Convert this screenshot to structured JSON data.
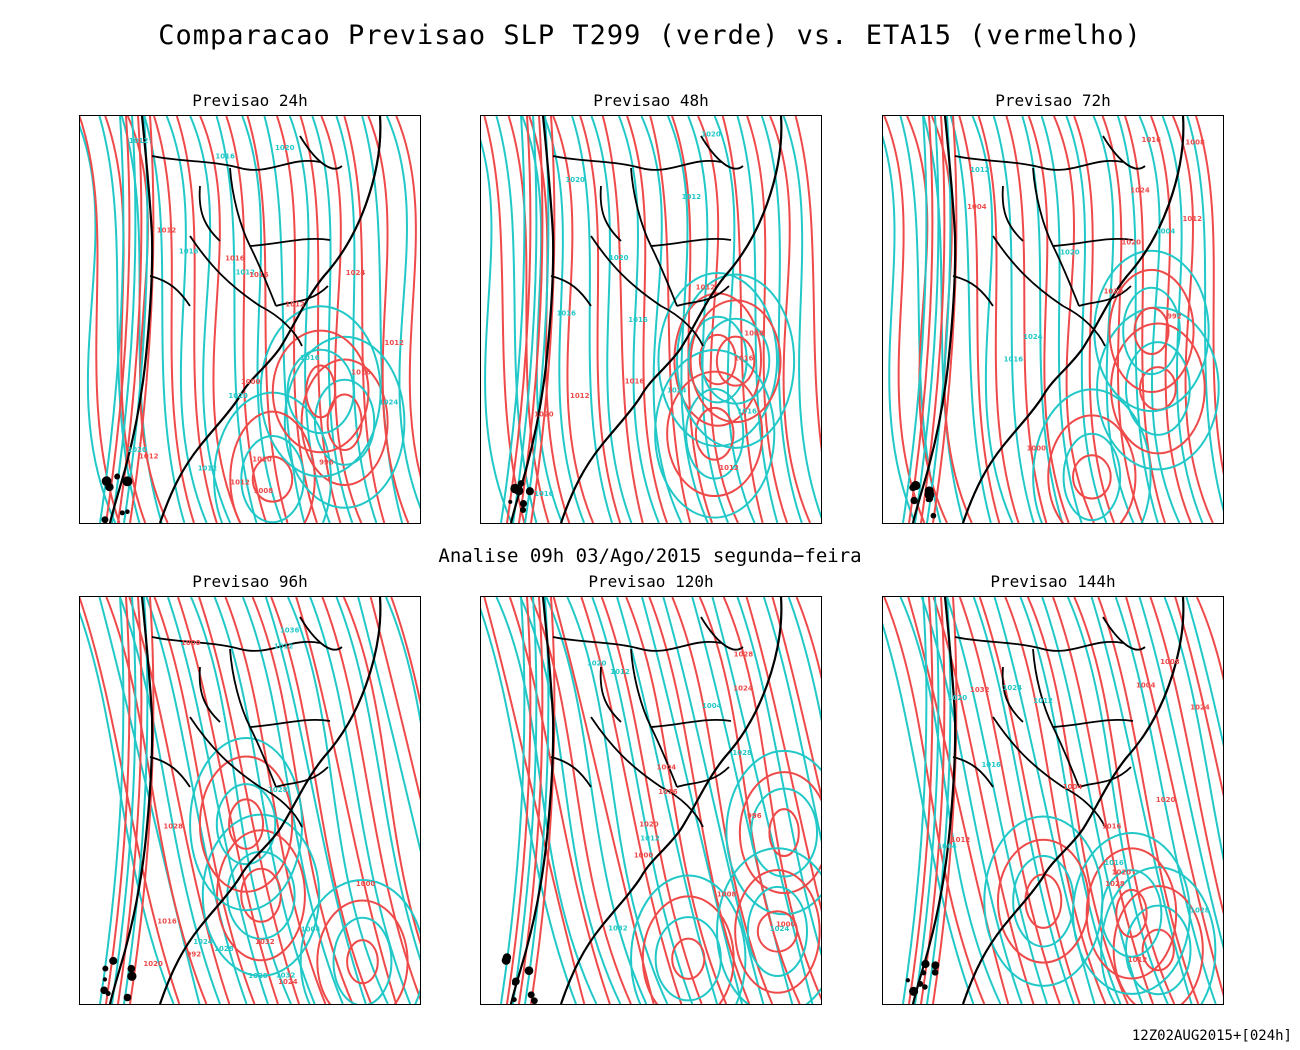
{
  "figure": {
    "title": "Comparacao Previsao SLP T299 (verde) vs. ETA15 (vermelho)",
    "analysis_label": "Analise 09h 03/Ago/2015 segunda−feira",
    "footer": "12Z02AUG2015+[024h]"
  },
  "colors": {
    "t299": "#22c8c8",
    "eta15": "#ef4a4a",
    "land": "#000000"
  },
  "panels": [
    {
      "title": "Previsao 24h",
      "labels_green": [
        "1020",
        "1016",
        "1012",
        "1024",
        "1020",
        "1012",
        "1016",
        "1016",
        "1020",
        "1012"
      ],
      "labels_red": [
        "1012",
        "1012",
        "1016",
        "1020",
        "1016",
        "1012",
        "1012",
        "1016",
        "1012",
        "1024",
        "1000",
        "996",
        "1008"
      ]
    },
    {
      "title": "Previsao 48h",
      "labels_green": [
        "1024",
        "1020",
        "1016",
        "1020",
        "1016",
        "1016",
        "1020",
        "1012",
        "1016"
      ],
      "labels_red": [
        "1016",
        "1020",
        "1012",
        "1012",
        "1008",
        "1012",
        "1016"
      ]
    },
    {
      "title": "Previsao 72h",
      "labels_green": [
        "1020",
        "1016",
        "1012",
        "1024",
        "1004"
      ],
      "labels_red": [
        "1016",
        "1020",
        "1008",
        "1024",
        "1020",
        "1012",
        "1000",
        "992",
        "1004"
      ]
    },
    {
      "title": "Previsao 96h",
      "labels_green": [
        "1020",
        "1024",
        "1028",
        "1032",
        "1036",
        "1012",
        "1004",
        "1028"
      ],
      "labels_red": [
        "1016",
        "1020",
        "1000",
        "1024",
        "1028",
        "1032",
        "992",
        "1000"
      ]
    },
    {
      "title": "Previsao 120h",
      "labels_green": [
        "1012",
        "1020",
        "1024",
        "1028",
        "1032",
        "1012",
        "1004"
      ],
      "labels_red": [
        "1008",
        "1016",
        "1020",
        "1024",
        "1028",
        "1000",
        "996",
        "1004",
        "1000"
      ]
    },
    {
      "title": "Previsao 144h",
      "labels_green": [
        "1012",
        "1016",
        "1024",
        "1028",
        "1004",
        "1020",
        "1016"
      ],
      "labels_red": [
        "1012",
        "1008",
        "1004",
        "1020",
        "1024",
        "1028",
        "1032",
        "1012",
        "1016",
        "1020",
        "1004"
      ]
    }
  ]
}
